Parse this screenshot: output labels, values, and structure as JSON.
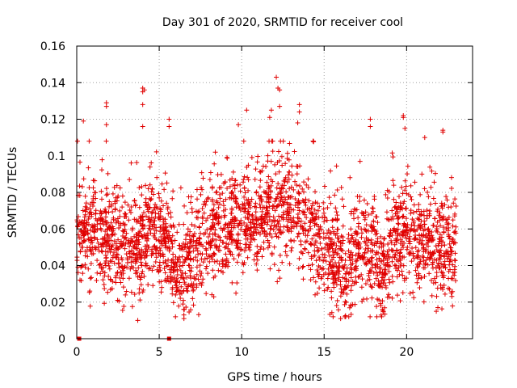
{
  "chart_data": {
    "type": "scatter",
    "title": "Day 301 of 2020, SRMTID for receiver cool",
    "xlabel": "GPS time / hours",
    "ylabel": "SRMTID / TECUs",
    "xlim": [
      0,
      24
    ],
    "ylim": [
      0,
      0.16
    ],
    "xticks": [
      0,
      5,
      10,
      15,
      20
    ],
    "xtick_labels": [
      "0",
      "5",
      "10",
      "15",
      "20"
    ],
    "yticks": [
      0,
      0.02,
      0.04,
      0.06,
      0.08,
      0.1,
      0.12,
      0.14,
      0.16
    ],
    "ytick_labels": [
      "0",
      "0.02",
      "0.04",
      "0.06",
      "0.08",
      "0.1",
      "0.12",
      "0.14",
      "0.16"
    ],
    "grid": true,
    "marker": "+",
    "color": "#e00000",
    "x_end": 23.0,
    "baseline": [
      {
        "hour": 0.0,
        "value": 0.056
      },
      {
        "hour": 1.0,
        "value": 0.058
      },
      {
        "hour": 2.0,
        "value": 0.055
      },
      {
        "hour": 3.0,
        "value": 0.05
      },
      {
        "hour": 3.5,
        "value": 0.044
      },
      {
        "hour": 4.0,
        "value": 0.052
      },
      {
        "hour": 4.5,
        "value": 0.06
      },
      {
        "hour": 5.0,
        "value": 0.055
      },
      {
        "hour": 5.5,
        "value": 0.052
      },
      {
        "hour": 6.3,
        "value": 0.03
      },
      {
        "hour": 7.0,
        "value": 0.046
      },
      {
        "hour": 8.0,
        "value": 0.058
      },
      {
        "hour": 9.0,
        "value": 0.06
      },
      {
        "hour": 10.0,
        "value": 0.064
      },
      {
        "hour": 11.0,
        "value": 0.066
      },
      {
        "hour": 12.0,
        "value": 0.072
      },
      {
        "hour": 13.0,
        "value": 0.074
      },
      {
        "hour": 14.0,
        "value": 0.06
      },
      {
        "hour": 15.0,
        "value": 0.048
      },
      {
        "hour": 16.0,
        "value": 0.045
      },
      {
        "hour": 16.3,
        "value": 0.03
      },
      {
        "hour": 17.0,
        "value": 0.055
      },
      {
        "hour": 18.0,
        "value": 0.046
      },
      {
        "hour": 18.4,
        "value": 0.032
      },
      {
        "hour": 19.0,
        "value": 0.052
      },
      {
        "hour": 20.0,
        "value": 0.06
      },
      {
        "hour": 21.0,
        "value": 0.052
      },
      {
        "hour": 22.0,
        "value": 0.05
      },
      {
        "hour": 23.0,
        "value": 0.048
      }
    ],
    "spread": 0.014,
    "points_per_hour": 120,
    "outliers": [
      {
        "hour": 0.4,
        "value": 0.119
      },
      {
        "hour": 1.8,
        "value": 0.129
      },
      {
        "hour": 1.8,
        "value": 0.127
      },
      {
        "hour": 1.8,
        "value": 0.117
      },
      {
        "hour": 4.0,
        "value": 0.137
      },
      {
        "hour": 4.0,
        "value": 0.135
      },
      {
        "hour": 4.0,
        "value": 0.128
      },
      {
        "hour": 4.0,
        "value": 0.116
      },
      {
        "hour": 4.1,
        "value": 0.136
      },
      {
        "hour": 5.6,
        "value": 0.12
      },
      {
        "hour": 5.6,
        "value": 0.116
      },
      {
        "hour": 3.7,
        "value": 0.01
      },
      {
        "hour": 6.5,
        "value": 0.011
      },
      {
        "hour": 9.8,
        "value": 0.117
      },
      {
        "hour": 10.3,
        "value": 0.125
      },
      {
        "hour": 11.8,
        "value": 0.125
      },
      {
        "hour": 12.1,
        "value": 0.143
      },
      {
        "hour": 12.2,
        "value": 0.137
      },
      {
        "hour": 12.3,
        "value": 0.136
      },
      {
        "hour": 12.3,
        "value": 0.127
      },
      {
        "hour": 11.7,
        "value": 0.121
      },
      {
        "hour": 13.5,
        "value": 0.128
      },
      {
        "hour": 13.5,
        "value": 0.124
      },
      {
        "hour": 13.4,
        "value": 0.118
      },
      {
        "hour": 17.8,
        "value": 0.12
      },
      {
        "hour": 17.8,
        "value": 0.116
      },
      {
        "hour": 19.8,
        "value": 0.122
      },
      {
        "hour": 19.8,
        "value": 0.121
      },
      {
        "hour": 19.9,
        "value": 0.115
      },
      {
        "hour": 22.2,
        "value": 0.114
      },
      {
        "hour": 22.2,
        "value": 0.113
      },
      {
        "hour": 21.1,
        "value": 0.11
      },
      {
        "hour": 21.8,
        "value": 0.015
      },
      {
        "hour": 16.0,
        "value": 0.011
      }
    ],
    "zero_markers": [
      {
        "hour": 0.15,
        "value": 0
      },
      {
        "hour": 5.6,
        "value": 0
      }
    ]
  }
}
